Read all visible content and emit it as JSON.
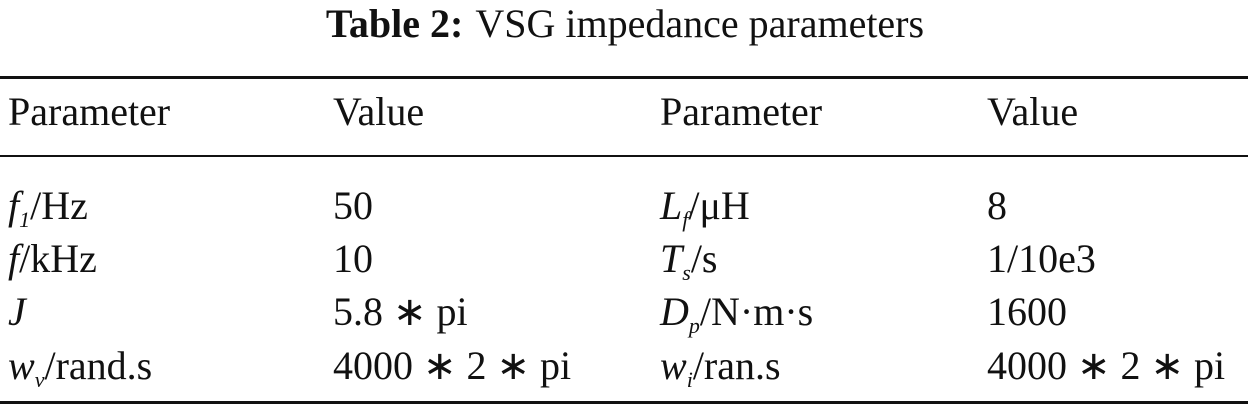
{
  "table": {
    "caption": {
      "label": "Table 2:",
      "text": "VSG impedance parameters"
    },
    "header": [
      "Parameter",
      "Value",
      "Parameter",
      "Value"
    ],
    "rows": [
      [
        {
          "symbol": "f",
          "sub": "1",
          "unit": "/Hz"
        },
        "50",
        {
          "symbol": "L",
          "sub": "f",
          "unit": "/μH"
        },
        "8"
      ],
      [
        {
          "symbol": "f",
          "unit": "/kHz"
        },
        "10",
        {
          "symbol": "T",
          "sub": "s",
          "unit": "/s"
        },
        "1/10e3"
      ],
      [
        {
          "symbol": "J"
        },
        "5.8 ∗ pi",
        {
          "symbol": "D",
          "sub": "p",
          "unit": "/N·m·s"
        },
        "1600"
      ],
      [
        {
          "symbol": "w",
          "sub": "v",
          "unit": "/rand.s"
        },
        "4000 ∗ 2 ∗ pi",
        {
          "symbol": "w",
          "sub": "i",
          "unit": "/ran.s"
        },
        "4000 ∗ 2 ∗ pi"
      ]
    ]
  }
}
